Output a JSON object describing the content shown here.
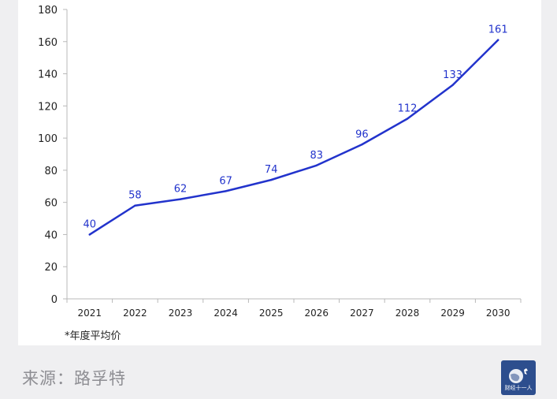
{
  "chart_data": {
    "type": "line",
    "x": [
      "2021",
      "2022",
      "2023",
      "2024",
      "2025",
      "2026",
      "2027",
      "2028",
      "2029",
      "2030"
    ],
    "series": [
      {
        "values": [
          40,
          58,
          62,
          67,
          74,
          83,
          96,
          112,
          133,
          161
        ],
        "color": "#2233cc"
      }
    ],
    "ylim": [
      0,
      180
    ],
    "yticks": [
      0,
      20,
      40,
      60,
      80,
      100,
      120,
      140,
      160,
      180
    ],
    "grid": false,
    "data_labels": true,
    "label_color": "#2233cc"
  },
  "footnote": "*年度平均价",
  "source": "来源：路孚特",
  "logo": {
    "text": "财经十一人",
    "color": "#2d4e8e"
  }
}
